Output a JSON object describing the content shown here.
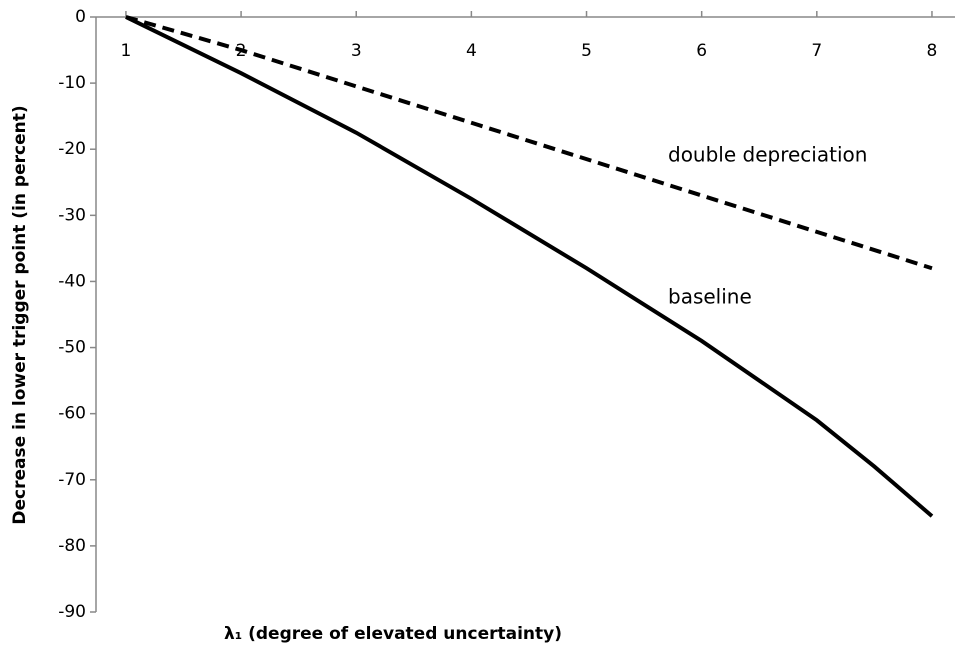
{
  "chart_data": {
    "type": "line",
    "x_label": "λ₁ (degree of elevated uncertainty)",
    "y_label": "Decrease in lower trigger point (in percent)",
    "series": [
      {
        "name": "baseline",
        "color": "#000000",
        "style": "solid",
        "x": [
          1,
          2,
          3,
          4,
          5,
          6,
          7,
          7.5,
          8
        ],
        "values": [
          0,
          -8.5,
          -17.5,
          -27.5,
          -38,
          -49,
          -61,
          -68,
          -75.5
        ]
      },
      {
        "name": "double depreciation",
        "color": "#000000",
        "style": "dashed",
        "x": [
          1,
          2,
          3,
          4,
          5,
          6,
          7,
          8
        ],
        "values": [
          0,
          -5,
          -10.5,
          -16,
          -21.5,
          -27,
          -32.5,
          -38
        ]
      }
    ],
    "xlim": [
      0.74,
      8.2
    ],
    "xticks": [
      1,
      2,
      3,
      4,
      5,
      6,
      7,
      8
    ],
    "ylim": [
      -90,
      0
    ],
    "yticks": [
      0,
      -10,
      -20,
      -30,
      -40,
      -50,
      -60,
      -70,
      -80,
      -90
    ],
    "grid": false
  }
}
